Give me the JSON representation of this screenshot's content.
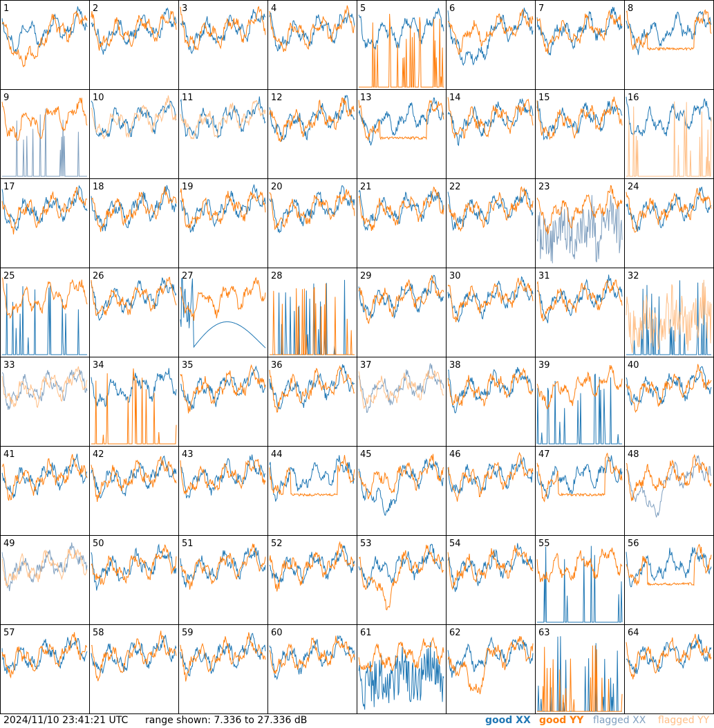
{
  "footer": {
    "timestamp": "2024/11/10 23:41:21 UTC",
    "range": "range shown: 7.336 to 27.336 dB"
  },
  "legend": {
    "good_xx": "good XX",
    "good_yy": "good YY",
    "flagged_xx": "flagged XX",
    "flagged_yy": "flagged YY"
  },
  "colors": {
    "good_xx": "#1f77b4",
    "good_yy": "#ff7f0e",
    "flagged_xx": "#7f9fbf",
    "flagged_yy": "#ffbf87",
    "border": "#000000",
    "background": "#ffffff"
  },
  "chart_data": {
    "type": "line",
    "layout": "8x8 small multiples",
    "y_range_db": [
      7.336,
      27.336
    ],
    "panels": [
      {
        "label": "1",
        "xx": "good",
        "yy": "good",
        "xx_pattern": "normal",
        "yy_pattern": "dip"
      },
      {
        "label": "2",
        "xx": "good",
        "yy": "good",
        "xx_pattern": "normal",
        "yy_pattern": "normal"
      },
      {
        "label": "3",
        "xx": "good",
        "yy": "good",
        "xx_pattern": "normal",
        "yy_pattern": "normal"
      },
      {
        "label": "4",
        "xx": "good",
        "yy": "good",
        "xx_pattern": "normal",
        "yy_pattern": "normal"
      },
      {
        "label": "5",
        "xx": "good",
        "yy": "good",
        "xx_pattern": "normal",
        "yy_pattern": "spiky"
      },
      {
        "label": "6",
        "xx": "good",
        "yy": "good",
        "xx_pattern": "dip",
        "yy_pattern": "normal"
      },
      {
        "label": "7",
        "xx": "good",
        "yy": "good",
        "xx_pattern": "normal",
        "yy_pattern": "normal"
      },
      {
        "label": "8",
        "xx": "good",
        "yy": "good",
        "xx_pattern": "normal",
        "yy_pattern": "flat"
      },
      {
        "label": "9",
        "xx": "flagged",
        "yy": "good",
        "xx_pattern": "spiky",
        "yy_pattern": "normal"
      },
      {
        "label": "10",
        "xx": "good",
        "yy": "flagged",
        "xx_pattern": "normal",
        "yy_pattern": "normal"
      },
      {
        "label": "11",
        "xx": "good",
        "yy": "flagged",
        "xx_pattern": "normal",
        "yy_pattern": "normal"
      },
      {
        "label": "12",
        "xx": "good",
        "yy": "good",
        "xx_pattern": "normal",
        "yy_pattern": "normal"
      },
      {
        "label": "13",
        "xx": "good",
        "yy": "good",
        "xx_pattern": "normal",
        "yy_pattern": "flat"
      },
      {
        "label": "14",
        "xx": "good",
        "yy": "good",
        "xx_pattern": "normal",
        "yy_pattern": "normal"
      },
      {
        "label": "15",
        "xx": "good",
        "yy": "good",
        "xx_pattern": "normal",
        "yy_pattern": "normal"
      },
      {
        "label": "16",
        "xx": "good",
        "yy": "flagged",
        "xx_pattern": "normal",
        "yy_pattern": "spiky"
      },
      {
        "label": "17",
        "xx": "good",
        "yy": "good",
        "xx_pattern": "normal",
        "yy_pattern": "normal"
      },
      {
        "label": "18",
        "xx": "good",
        "yy": "good",
        "xx_pattern": "normal",
        "yy_pattern": "normal"
      },
      {
        "label": "19",
        "xx": "good",
        "yy": "good",
        "xx_pattern": "normal",
        "yy_pattern": "normal"
      },
      {
        "label": "20",
        "xx": "good",
        "yy": "good",
        "xx_pattern": "normal",
        "yy_pattern": "normal"
      },
      {
        "label": "21",
        "xx": "good",
        "yy": "good",
        "xx_pattern": "normal",
        "yy_pattern": "normal"
      },
      {
        "label": "22",
        "xx": "good",
        "yy": "good",
        "xx_pattern": "normal",
        "yy_pattern": "normal"
      },
      {
        "label": "23",
        "xx": "flagged",
        "yy": "good",
        "xx_pattern": "noisy",
        "yy_pattern": "normal"
      },
      {
        "label": "24",
        "xx": "good",
        "yy": "good",
        "xx_pattern": "normal",
        "yy_pattern": "normal"
      },
      {
        "label": "25",
        "xx": "good",
        "yy": "good",
        "xx_pattern": "spiky",
        "yy_pattern": "normal"
      },
      {
        "label": "26",
        "xx": "good",
        "yy": "good",
        "xx_pattern": "normal",
        "yy_pattern": "normal"
      },
      {
        "label": "27",
        "xx": "good",
        "yy": "good",
        "xx_pattern": "arc",
        "yy_pattern": "normal"
      },
      {
        "label": "28",
        "xx": "good",
        "yy": "good",
        "xx_pattern": "spiky",
        "yy_pattern": "spiky"
      },
      {
        "label": "29",
        "xx": "good",
        "yy": "good",
        "xx_pattern": "normal",
        "yy_pattern": "normal"
      },
      {
        "label": "30",
        "xx": "good",
        "yy": "good",
        "xx_pattern": "normal",
        "yy_pattern": "normal"
      },
      {
        "label": "31",
        "xx": "good",
        "yy": "good",
        "xx_pattern": "normal",
        "yy_pattern": "normal"
      },
      {
        "label": "32",
        "xx": "good",
        "yy": "flagged",
        "xx_pattern": "spiky",
        "yy_pattern": "noisy"
      },
      {
        "label": "33",
        "xx": "flagged",
        "yy": "flagged",
        "xx_pattern": "normal",
        "yy_pattern": "normal"
      },
      {
        "label": "34",
        "xx": "good",
        "yy": "good",
        "xx_pattern": "normal",
        "yy_pattern": "spiky"
      },
      {
        "label": "35",
        "xx": "good",
        "yy": "good",
        "xx_pattern": "normal",
        "yy_pattern": "normal"
      },
      {
        "label": "36",
        "xx": "good",
        "yy": "good",
        "xx_pattern": "normal",
        "yy_pattern": "normal"
      },
      {
        "label": "37",
        "xx": "flagged",
        "yy": "flagged",
        "xx_pattern": "normal",
        "yy_pattern": "normal"
      },
      {
        "label": "38",
        "xx": "good",
        "yy": "good",
        "xx_pattern": "normal",
        "yy_pattern": "normal"
      },
      {
        "label": "39",
        "xx": "good",
        "yy": "good",
        "xx_pattern": "spiky",
        "yy_pattern": "normal"
      },
      {
        "label": "40",
        "xx": "good",
        "yy": "good",
        "xx_pattern": "normal",
        "yy_pattern": "normal"
      },
      {
        "label": "41",
        "xx": "good",
        "yy": "good",
        "xx_pattern": "normal",
        "yy_pattern": "normal"
      },
      {
        "label": "42",
        "xx": "good",
        "yy": "good",
        "xx_pattern": "normal",
        "yy_pattern": "normal"
      },
      {
        "label": "43",
        "xx": "good",
        "yy": "good",
        "xx_pattern": "normal",
        "yy_pattern": "normal"
      },
      {
        "label": "44",
        "xx": "good",
        "yy": "good",
        "xx_pattern": "normal",
        "yy_pattern": "flat"
      },
      {
        "label": "45",
        "xx": "good",
        "yy": "good",
        "xx_pattern": "dip",
        "yy_pattern": "normal"
      },
      {
        "label": "46",
        "xx": "good",
        "yy": "good",
        "xx_pattern": "normal",
        "yy_pattern": "normal"
      },
      {
        "label": "47",
        "xx": "good",
        "yy": "good",
        "xx_pattern": "normal",
        "yy_pattern": "flat"
      },
      {
        "label": "48",
        "xx": "flagged",
        "yy": "good",
        "xx_pattern": "dip",
        "yy_pattern": "normal"
      },
      {
        "label": "49",
        "xx": "flagged",
        "yy": "flagged",
        "xx_pattern": "normal",
        "yy_pattern": "normal"
      },
      {
        "label": "50",
        "xx": "good",
        "yy": "good",
        "xx_pattern": "normal",
        "yy_pattern": "normal"
      },
      {
        "label": "51",
        "xx": "good",
        "yy": "good",
        "xx_pattern": "normal",
        "yy_pattern": "normal"
      },
      {
        "label": "52",
        "xx": "good",
        "yy": "good",
        "xx_pattern": "normal",
        "yy_pattern": "normal"
      },
      {
        "label": "53",
        "xx": "good",
        "yy": "good",
        "xx_pattern": "normal",
        "yy_pattern": "dip"
      },
      {
        "label": "54",
        "xx": "good",
        "yy": "good",
        "xx_pattern": "normal",
        "yy_pattern": "normal"
      },
      {
        "label": "55",
        "xx": "good",
        "yy": "good",
        "xx_pattern": "spiky",
        "yy_pattern": "normal"
      },
      {
        "label": "56",
        "xx": "good",
        "yy": "good",
        "xx_pattern": "normal",
        "yy_pattern": "flat"
      },
      {
        "label": "57",
        "xx": "good",
        "yy": "good",
        "xx_pattern": "normal",
        "yy_pattern": "normal"
      },
      {
        "label": "58",
        "xx": "good",
        "yy": "good",
        "xx_pattern": "normal",
        "yy_pattern": "normal"
      },
      {
        "label": "59",
        "xx": "good",
        "yy": "good",
        "xx_pattern": "normal",
        "yy_pattern": "normal"
      },
      {
        "label": "60",
        "xx": "good",
        "yy": "good",
        "xx_pattern": "normal",
        "yy_pattern": "normal"
      },
      {
        "label": "61",
        "xx": "good",
        "yy": "good",
        "xx_pattern": "noisy",
        "yy_pattern": "normal"
      },
      {
        "label": "62",
        "xx": "good",
        "yy": "good",
        "xx_pattern": "normal",
        "yy_pattern": "dip"
      },
      {
        "label": "63",
        "xx": "good",
        "yy": "good",
        "xx_pattern": "spiky",
        "yy_pattern": "spiky"
      },
      {
        "label": "64",
        "xx": "good",
        "yy": "good",
        "xx_pattern": "normal",
        "yy_pattern": "normal"
      }
    ]
  }
}
